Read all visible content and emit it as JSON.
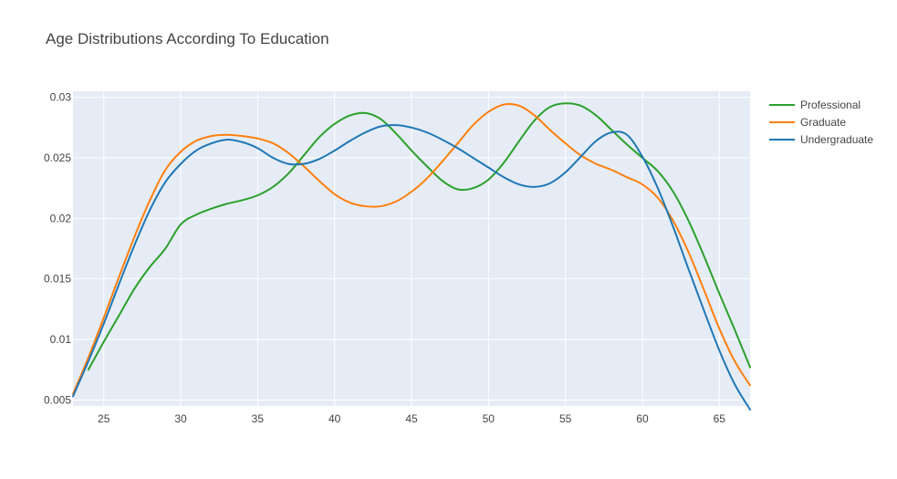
{
  "chart_data": {
    "type": "line",
    "title": "Age Distributions According To Education",
    "xlabel": "",
    "ylabel": "",
    "xlim": [
      23,
      67
    ],
    "ylim": [
      0.0045,
      0.0305
    ],
    "x_ticks": [
      25,
      30,
      35,
      40,
      45,
      50,
      55,
      60,
      65
    ],
    "y_ticks": [
      0.005,
      0.01,
      0.015,
      0.02,
      0.025,
      0.03
    ],
    "y_tick_labels": [
      "0.005",
      "0.01",
      "0.015",
      "0.02",
      "0.025",
      "0.03"
    ],
    "grid": true,
    "legend_position": "top-right",
    "plot_background": "#e5ecf6",
    "series": [
      {
        "name": "Professional",
        "color": "#2ca02c",
        "points": [
          [
            24,
            0.0075
          ],
          [
            25,
            0.0098
          ],
          [
            26,
            0.012
          ],
          [
            27,
            0.0142
          ],
          [
            28,
            0.016
          ],
          [
            29,
            0.0175
          ],
          [
            30,
            0.0195
          ],
          [
            31,
            0.0203
          ],
          [
            32,
            0.0208
          ],
          [
            33,
            0.0212
          ],
          [
            34,
            0.0215
          ],
          [
            35,
            0.0219
          ],
          [
            36,
            0.0226
          ],
          [
            37,
            0.0237
          ],
          [
            38,
            0.0252
          ],
          [
            39,
            0.0267
          ],
          [
            40,
            0.0278
          ],
          [
            41,
            0.0285
          ],
          [
            42,
            0.0287
          ],
          [
            43,
            0.0282
          ],
          [
            44,
            0.027
          ],
          [
            45,
            0.0256
          ],
          [
            46,
            0.0243
          ],
          [
            47,
            0.0231
          ],
          [
            48,
            0.0224
          ],
          [
            49,
            0.0225
          ],
          [
            50,
            0.0232
          ],
          [
            51,
            0.0246
          ],
          [
            52,
            0.0264
          ],
          [
            53,
            0.0281
          ],
          [
            54,
            0.0292
          ],
          [
            55,
            0.0295
          ],
          [
            56,
            0.0293
          ],
          [
            57,
            0.0285
          ],
          [
            58,
            0.0273
          ],
          [
            59,
            0.0261
          ],
          [
            60,
            0.025
          ],
          [
            61,
            0.0239
          ],
          [
            62,
            0.0222
          ],
          [
            63,
            0.0198
          ],
          [
            64,
            0.0169
          ],
          [
            65,
            0.0138
          ],
          [
            66,
            0.0108
          ],
          [
            67,
            0.0077
          ]
        ]
      },
      {
        "name": "Graduate",
        "color": "#ff7f0e",
        "points": [
          [
            23,
            0.0055
          ],
          [
            24,
            0.0085
          ],
          [
            25,
            0.0118
          ],
          [
            26,
            0.0152
          ],
          [
            27,
            0.0185
          ],
          [
            28,
            0.0215
          ],
          [
            29,
            0.024
          ],
          [
            30,
            0.0255
          ],
          [
            31,
            0.0264
          ],
          [
            32,
            0.0268
          ],
          [
            33,
            0.0269
          ],
          [
            34,
            0.0268
          ],
          [
            35,
            0.0266
          ],
          [
            36,
            0.0262
          ],
          [
            37,
            0.0254
          ],
          [
            38,
            0.0243
          ],
          [
            39,
            0.0231
          ],
          [
            40,
            0.022
          ],
          [
            41,
            0.0213
          ],
          [
            42,
            0.021
          ],
          [
            43,
            0.021
          ],
          [
            44,
            0.0214
          ],
          [
            45,
            0.0222
          ],
          [
            46,
            0.0233
          ],
          [
            47,
            0.0247
          ],
          [
            48,
            0.0262
          ],
          [
            49,
            0.0277
          ],
          [
            50,
            0.0288
          ],
          [
            51,
            0.0294
          ],
          [
            52,
            0.0293
          ],
          [
            53,
            0.0285
          ],
          [
            54,
            0.0273
          ],
          [
            55,
            0.0262
          ],
          [
            56,
            0.0252
          ],
          [
            57,
            0.0245
          ],
          [
            58,
            0.024
          ],
          [
            59,
            0.0234
          ],
          [
            60,
            0.0228
          ],
          [
            61,
            0.0217
          ],
          [
            62,
            0.0198
          ],
          [
            63,
            0.0172
          ],
          [
            64,
            0.0141
          ],
          [
            65,
            0.0109
          ],
          [
            66,
            0.0082
          ],
          [
            67,
            0.0062
          ]
        ]
      },
      {
        "name": "Undergraduate",
        "color": "#1f77b4",
        "points": [
          [
            23,
            0.0053
          ],
          [
            24,
            0.0082
          ],
          [
            25,
            0.0113
          ],
          [
            26,
            0.0146
          ],
          [
            27,
            0.0178
          ],
          [
            28,
            0.0207
          ],
          [
            29,
            0.023
          ],
          [
            30,
            0.0245
          ],
          [
            31,
            0.0256
          ],
          [
            32,
            0.0262
          ],
          [
            33,
            0.0265
          ],
          [
            34,
            0.0263
          ],
          [
            35,
            0.0258
          ],
          [
            36,
            0.025
          ],
          [
            37,
            0.0245
          ],
          [
            38,
            0.0245
          ],
          [
            39,
            0.0249
          ],
          [
            40,
            0.0256
          ],
          [
            41,
            0.0264
          ],
          [
            42,
            0.0271
          ],
          [
            43,
            0.0276
          ],
          [
            44,
            0.0277
          ],
          [
            45,
            0.0275
          ],
          [
            46,
            0.0271
          ],
          [
            47,
            0.0265
          ],
          [
            48,
            0.0258
          ],
          [
            49,
            0.025
          ],
          [
            50,
            0.0242
          ],
          [
            51,
            0.0234
          ],
          [
            52,
            0.0228
          ],
          [
            53,
            0.0226
          ],
          [
            54,
            0.0229
          ],
          [
            55,
            0.0238
          ],
          [
            56,
            0.0251
          ],
          [
            57,
            0.0264
          ],
          [
            58,
            0.0271
          ],
          [
            59,
            0.0269
          ],
          [
            60,
            0.0251
          ],
          [
            61,
            0.0225
          ],
          [
            62,
            0.0193
          ],
          [
            63,
            0.0158
          ],
          [
            64,
            0.0124
          ],
          [
            65,
            0.0091
          ],
          [
            66,
            0.0063
          ],
          [
            67,
            0.0042
          ]
        ]
      }
    ]
  }
}
